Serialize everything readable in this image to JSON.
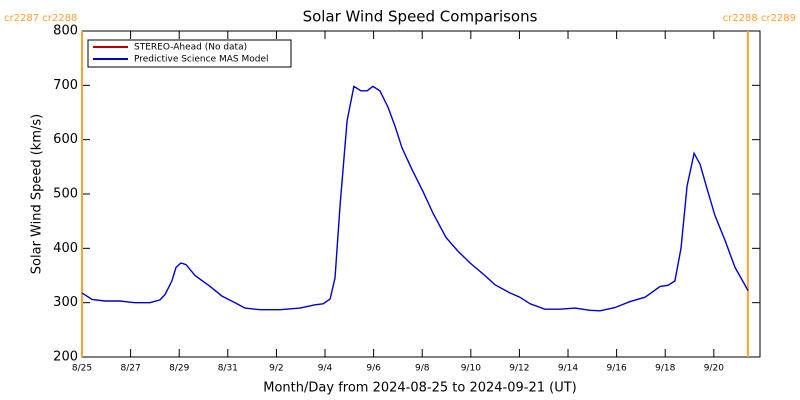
{
  "chart_data": {
    "type": "line",
    "title": "Solar Wind Speed Comparisons",
    "xlabel": "Month/Day from 2024-08-25 to 2024-09-21 (UT)",
    "ylabel": "Solar Wind Speed (km/s)",
    "x": [
      0,
      0.41,
      0.95,
      1.56,
      2.18,
      2.8,
      3.21,
      3.42,
      3.7,
      3.87,
      4.07,
      4.28,
      4.65,
      5.27,
      5.76,
      6.3,
      6.71,
      7.33,
      8.15,
      8.97,
      9.59,
      9.92,
      10.21,
      10.41,
      10.62,
      10.91,
      11.19,
      11.48,
      11.73,
      11.97,
      12.26,
      12.59,
      12.88,
      13.17,
      13.58,
      14.03,
      14.44,
      14.98,
      15.47,
      15.97,
      16.58,
      16.99,
      17.61,
      18.02,
      18.44,
      19.05,
      19.67,
      20.29,
      20.91,
      21.32,
      21.93,
      22.55,
      23.17,
      23.79,
      24.12,
      24.4,
      24.65,
      24.9,
      25.19,
      25.43,
      25.72,
      26.05,
      26.46,
      26.87,
      27.41
    ],
    "series": [
      {
        "name": "STEREO-Ahead (No data)",
        "color": "#c00000",
        "values": [
          null,
          null,
          null,
          null,
          null,
          null,
          null,
          null,
          null,
          null,
          null,
          null,
          null,
          null,
          null,
          null,
          null,
          null,
          null,
          null,
          null,
          null,
          null,
          null,
          null,
          null,
          null,
          null,
          null,
          null,
          null,
          null,
          null,
          null,
          null,
          null,
          null,
          null,
          null,
          null,
          null,
          null,
          null,
          null,
          null,
          null,
          null,
          null,
          null,
          null,
          null,
          null,
          null,
          null,
          null,
          null,
          null,
          null,
          null,
          null,
          null,
          null,
          null,
          null,
          null
        ]
      },
      {
        "name": "Predictive Science MAS Model",
        "color": "#0000cc",
        "values": [
          318,
          306,
          303,
          303,
          300,
          300,
          305,
          315,
          340,
          365,
          373,
          370,
          350,
          330,
          312,
          300,
          290,
          287,
          287,
          290,
          296,
          298,
          307,
          345,
          480,
          635,
          698,
          690,
          690,
          698,
          690,
          660,
          625,
          585,
          545,
          505,
          465,
          420,
          395,
          373,
          350,
          333,
          318,
          310,
          298,
          288,
          288,
          290,
          286,
          285,
          291,
          302,
          310,
          330,
          332,
          340,
          400,
          515,
          575,
          555,
          510,
          460,
          415,
          365,
          322
        ]
      }
    ],
    "xlim": [
      0,
      27.9
    ],
    "xticks": [
      {
        "value": 0,
        "label": "8/25"
      },
      {
        "value": 2,
        "label": "8/27"
      },
      {
        "value": 4,
        "label": "8/29"
      },
      {
        "value": 6,
        "label": "8/31"
      },
      {
        "value": 8,
        "label": "9/2"
      },
      {
        "value": 10,
        "label": "9/4"
      },
      {
        "value": 12,
        "label": "9/6"
      },
      {
        "value": 14,
        "label": "9/8"
      },
      {
        "value": 16,
        "label": "9/10"
      },
      {
        "value": 18,
        "label": "9/12"
      },
      {
        "value": 20,
        "label": "9/14"
      },
      {
        "value": 22,
        "label": "9/16"
      },
      {
        "value": 24,
        "label": "9/18"
      },
      {
        "value": 26,
        "label": "9/20"
      }
    ],
    "ylim": [
      200,
      800
    ],
    "yticks": [
      200,
      300,
      400,
      500,
      600,
      700,
      800
    ],
    "legend": "upper left",
    "annotations": [
      {
        "label": "cr2287 cr2288",
        "x": 0,
        "color": "#ffa030"
      },
      {
        "label": "cr2288 cr2289",
        "x": 27.4,
        "color": "#ffa030"
      }
    ]
  }
}
